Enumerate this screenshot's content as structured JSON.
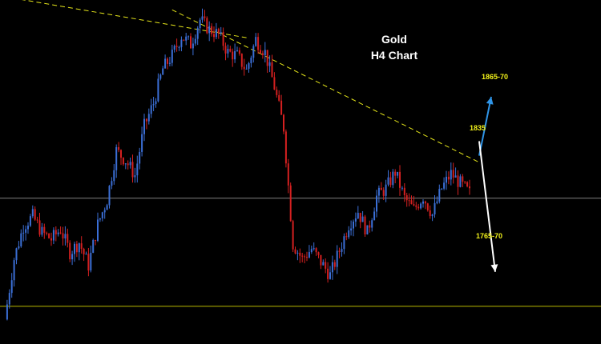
{
  "chart_data": {
    "type": "candlestick",
    "title": "Gold",
    "subtitle": "H4 Chart",
    "xlabel": "",
    "ylabel": "",
    "ylim": [
      1720,
      1930
    ],
    "grid": false,
    "legend": "none",
    "colors": {
      "background": "#000000",
      "bull": "#3b6fd6",
      "bear": "#d42020",
      "trendline": "#e6e61a",
      "support": "#b8b800",
      "midline": "#808080",
      "arrow_up": "#2f95e8",
      "arrow_down": "#ffffff",
      "label": "#f2f21a",
      "title": "#ffffff"
    },
    "series": [
      {
        "values": [
          1735,
          1772,
          1792,
          1798,
          1788,
          1784,
          1790,
          1776,
          1782,
          1768,
          1793,
          1808,
          1838,
          1832,
          1823,
          1853,
          1867,
          1888,
          1896,
          1908,
          1903,
          1918,
          1912,
          1909,
          1898,
          1896,
          1887,
          1906,
          1898,
          1877,
          1852,
          1781,
          1772,
          1778,
          1770,
          1762,
          1777,
          1793,
          1801,
          1788,
          1810,
          1815,
          1825,
          1809,
          1802,
          1810,
          1799,
          1815,
          1824,
          1818,
          1812
        ]
      }
    ],
    "reference_lines": [
      {
        "type": "horizontal",
        "value": 1743
      },
      {
        "type": "horizontal",
        "value": 1809
      }
    ],
    "trendlines": [
      {
        "from_index": 0,
        "from_value": 1932,
        "to_index": 26,
        "to_value": 1907
      },
      {
        "from_index": 18,
        "from_value": 1924,
        "to_index": 51,
        "to_value": 1831
      }
    ],
    "annotations": [
      {
        "text": "1865-70",
        "value": 1867
      },
      {
        "text": "1835",
        "value": 1835
      },
      {
        "text": "1765-70",
        "value": 1767
      }
    ]
  }
}
